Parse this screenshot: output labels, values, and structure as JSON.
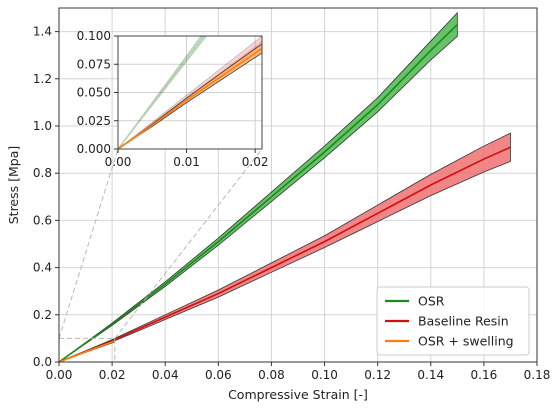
{
  "chart_data": {
    "type": "area",
    "xlabel": "Compressive Strain [-]",
    "ylabel": "Stress [Mpa]",
    "xlim": [
      0,
      0.18
    ],
    "ylim": [
      0,
      1.5
    ],
    "xticks": [
      "0.00",
      "0.02",
      "0.04",
      "0.06",
      "0.08",
      "0.10",
      "0.12",
      "0.14",
      "0.16",
      "0.18"
    ],
    "yticks": [
      "0.0",
      "0.2",
      "0.4",
      "0.6",
      "0.8",
      "1.0",
      "1.2",
      "1.4"
    ],
    "grid": true,
    "legend_position": "bottom-right",
    "series": [
      {
        "name": "OSR",
        "color": "#1a8a1a",
        "fill": "#4cb84c",
        "x": [
          0,
          0.02,
          0.04,
          0.06,
          0.08,
          0.1,
          0.12,
          0.14,
          0.15
        ],
        "y": [
          0,
          0.16,
          0.33,
          0.51,
          0.7,
          0.89,
          1.09,
          1.32,
          1.43
        ],
        "y_upper": [
          0,
          0.165,
          0.34,
          0.525,
          0.72,
          0.915,
          1.12,
          1.36,
          1.48
        ],
        "y_lower": [
          0,
          0.155,
          0.32,
          0.495,
          0.68,
          0.865,
          1.06,
          1.28,
          1.38
        ]
      },
      {
        "name": "Baseline Resin",
        "color": "#cc1111",
        "fill": "#f07070",
        "x": [
          0,
          0.02,
          0.04,
          0.06,
          0.08,
          0.1,
          0.12,
          0.14,
          0.16,
          0.17
        ],
        "y": [
          0,
          0.09,
          0.19,
          0.29,
          0.4,
          0.51,
          0.63,
          0.75,
          0.86,
          0.91
        ],
        "y_upper": [
          0,
          0.095,
          0.2,
          0.305,
          0.42,
          0.535,
          0.665,
          0.795,
          0.915,
          0.97
        ],
        "y_lower": [
          0,
          0.085,
          0.18,
          0.275,
          0.38,
          0.485,
          0.595,
          0.705,
          0.805,
          0.85
        ]
      },
      {
        "name": "OSR + swelling",
        "color": "#ff7f0e",
        "fill": "#ffb066",
        "x": [
          0,
          0.005,
          0.01,
          0.015,
          0.021
        ],
        "y": [
          0,
          0.021,
          0.043,
          0.064,
          0.089
        ],
        "y_upper": [
          0,
          0.022,
          0.045,
          0.067,
          0.093
        ],
        "y_lower": [
          0,
          0.02,
          0.041,
          0.061,
          0.085
        ]
      }
    ],
    "inset": {
      "xlim": [
        0,
        0.021
      ],
      "ylim": [
        0,
        0.1
      ],
      "xticks": [
        "0.00",
        "0.01",
        "0.02"
      ],
      "yticks": [
        "0.000",
        "0.025",
        "0.050",
        "0.075",
        "0.100"
      ]
    }
  }
}
